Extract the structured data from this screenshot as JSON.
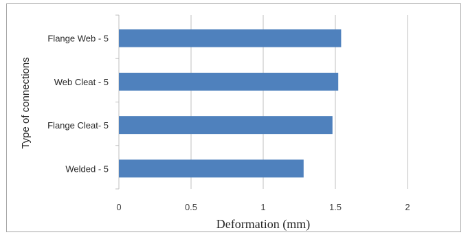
{
  "chart_data": {
    "type": "bar",
    "orientation": "horizontal",
    "categories": [
      "Flange Web - 5",
      "Web Cleat - 5",
      "Flange Cleat- 5",
      "Welded - 5"
    ],
    "values": [
      1.54,
      1.52,
      1.48,
      1.28
    ],
    "xlabel": "Deformation (mm)",
    "ylabel": "Type of connections",
    "xlim": [
      0,
      2
    ],
    "xticks": [
      "0",
      "0.5",
      "1",
      "1.5",
      "2"
    ],
    "grid": true,
    "legend": "none",
    "bar_color": "#4f81bd"
  }
}
